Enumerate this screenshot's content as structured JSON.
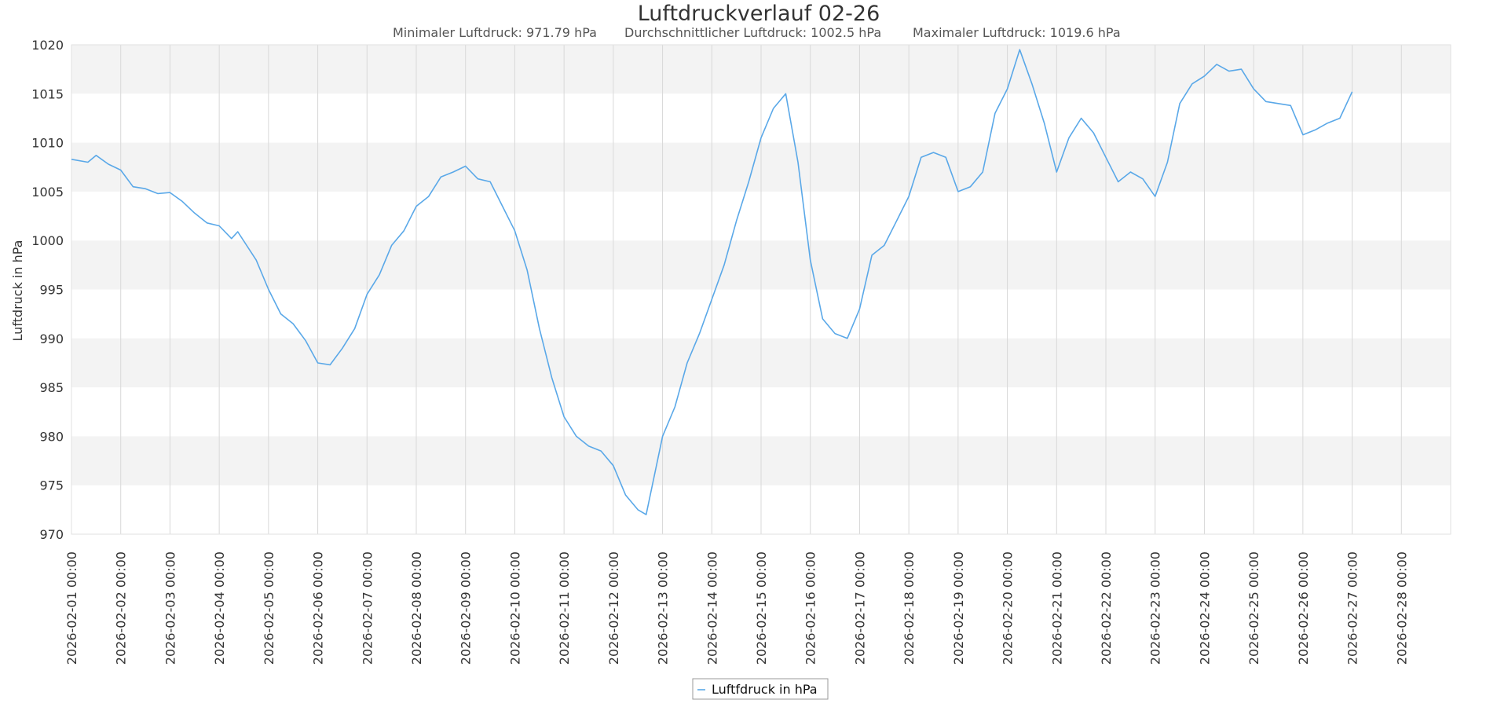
{
  "chart_data": {
    "type": "line",
    "title": "Luftdruckverlauf 02-26",
    "stats": [
      "Minimaler Luftdruck: 971.79 hPa",
      "Durchschnittlicher Luftdruck: 1002.5 hPa",
      "Maximaler Luftdruck: 1019.6 hPa"
    ],
    "xlabel": "",
    "ylabel": "Luftdruck in hPa",
    "ylim": [
      970,
      1020
    ],
    "yticks": [
      970,
      975,
      980,
      985,
      990,
      995,
      1000,
      1005,
      1010,
      1015,
      1020
    ],
    "xlim": [
      0,
      28
    ],
    "xticks": [
      "2026-02-01 00:00",
      "2026-02-02 00:00",
      "2026-02-03 00:00",
      "2026-02-04 00:00",
      "2026-02-05 00:00",
      "2026-02-06 00:00",
      "2026-02-07 00:00",
      "2026-02-08 00:00",
      "2026-02-09 00:00",
      "2026-02-10 00:00",
      "2026-02-11 00:00",
      "2026-02-12 00:00",
      "2026-02-13 00:00",
      "2026-02-14 00:00",
      "2026-02-15 00:00",
      "2026-02-16 00:00",
      "2026-02-17 00:00",
      "2026-02-18 00:00",
      "2026-02-19 00:00",
      "2026-02-20 00:00",
      "2026-02-21 00:00",
      "2026-02-22 00:00",
      "2026-02-23 00:00",
      "2026-02-24 00:00",
      "2026-02-25 00:00",
      "2026-02-26 00:00",
      "2026-02-27 00:00",
      "2026-02-28 00:00"
    ],
    "grid": true,
    "legend": "bottom-center",
    "series": [
      {
        "name": "Luftfdruck in hPa",
        "color": "#5aa8e8",
        "points": [
          [
            "2026-02-01 00:00",
            1008.3
          ],
          [
            "2026-02-01 08:00",
            1008.0
          ],
          [
            "2026-02-01 12:00",
            1008.7
          ],
          [
            "2026-02-01 18:00",
            1007.8
          ],
          [
            "2026-02-02 00:00",
            1007.2
          ],
          [
            "2026-02-02 06:00",
            1005.5
          ],
          [
            "2026-02-02 12:00",
            1005.3
          ],
          [
            "2026-02-02 18:00",
            1004.8
          ],
          [
            "2026-02-03 00:00",
            1004.9
          ],
          [
            "2026-02-03 06:00",
            1004.0
          ],
          [
            "2026-02-03 12:00",
            1002.8
          ],
          [
            "2026-02-03 18:00",
            1001.8
          ],
          [
            "2026-02-04 00:00",
            1001.5
          ],
          [
            "2026-02-04 06:00",
            1000.2
          ],
          [
            "2026-02-04 09:00",
            1000.9
          ],
          [
            "2026-02-04 18:00",
            998.0
          ],
          [
            "2026-02-05 00:00",
            995.0
          ],
          [
            "2026-02-05 06:00",
            992.5
          ],
          [
            "2026-02-05 12:00",
            991.5
          ],
          [
            "2026-02-05 18:00",
            989.8
          ],
          [
            "2026-02-06 00:00",
            987.5
          ],
          [
            "2026-02-06 06:00",
            987.3
          ],
          [
            "2026-02-06 12:00",
            989.0
          ],
          [
            "2026-02-06 18:00",
            991.0
          ],
          [
            "2026-02-07 00:00",
            994.5
          ],
          [
            "2026-02-07 06:00",
            996.5
          ],
          [
            "2026-02-07 12:00",
            999.5
          ],
          [
            "2026-02-07 18:00",
            1001.0
          ],
          [
            "2026-02-08 00:00",
            1003.5
          ],
          [
            "2026-02-08 06:00",
            1004.5
          ],
          [
            "2026-02-08 12:00",
            1006.5
          ],
          [
            "2026-02-08 18:00",
            1007.0
          ],
          [
            "2026-02-09 00:00",
            1007.6
          ],
          [
            "2026-02-09 06:00",
            1006.3
          ],
          [
            "2026-02-09 12:00",
            1006.0
          ],
          [
            "2026-02-09 18:00",
            1003.5
          ],
          [
            "2026-02-10 00:00",
            1001.0
          ],
          [
            "2026-02-10 06:00",
            997.0
          ],
          [
            "2026-02-10 12:00",
            991.0
          ],
          [
            "2026-02-10 18:00",
            986.0
          ],
          [
            "2026-02-11 00:00",
            982.0
          ],
          [
            "2026-02-11 06:00",
            980.0
          ],
          [
            "2026-02-11 12:00",
            979.0
          ],
          [
            "2026-02-11 18:00",
            978.5
          ],
          [
            "2026-02-12 00:00",
            977.0
          ],
          [
            "2026-02-12 06:00",
            974.0
          ],
          [
            "2026-02-12 12:00",
            972.5
          ],
          [
            "2026-02-12 16:00",
            972.0
          ],
          [
            "2026-02-13 00:00",
            980.0
          ],
          [
            "2026-02-13 06:00",
            983.0
          ],
          [
            "2026-02-13 12:00",
            987.5
          ],
          [
            "2026-02-13 18:00",
            990.5
          ],
          [
            "2026-02-14 00:00",
            994.0
          ],
          [
            "2026-02-14 06:00",
            997.5
          ],
          [
            "2026-02-14 12:00",
            1002.0
          ],
          [
            "2026-02-14 18:00",
            1006.0
          ],
          [
            "2026-02-15 00:00",
            1010.5
          ],
          [
            "2026-02-15 06:00",
            1013.5
          ],
          [
            "2026-02-15 12:00",
            1015.0
          ],
          [
            "2026-02-15 18:00",
            1008.0
          ],
          [
            "2026-02-16 00:00",
            998.0
          ],
          [
            "2026-02-16 06:00",
            992.0
          ],
          [
            "2026-02-16 12:00",
            990.5
          ],
          [
            "2026-02-16 18:00",
            990.0
          ],
          [
            "2026-02-17 00:00",
            993.0
          ],
          [
            "2026-02-17 06:00",
            998.5
          ],
          [
            "2026-02-17 12:00",
            999.5
          ],
          [
            "2026-02-17 18:00",
            1002.0
          ],
          [
            "2026-02-18 00:00",
            1004.5
          ],
          [
            "2026-02-18 06:00",
            1008.5
          ],
          [
            "2026-02-18 12:00",
            1009.0
          ],
          [
            "2026-02-18 18:00",
            1008.5
          ],
          [
            "2026-02-19 00:00",
            1005.0
          ],
          [
            "2026-02-19 06:00",
            1005.5
          ],
          [
            "2026-02-19 12:00",
            1007.0
          ],
          [
            "2026-02-19 18:00",
            1013.0
          ],
          [
            "2026-02-20 00:00",
            1015.5
          ],
          [
            "2026-02-20 06:00",
            1019.5
          ],
          [
            "2026-02-20 12:00",
            1016.0
          ],
          [
            "2026-02-20 18:00",
            1012.0
          ],
          [
            "2026-02-21 00:00",
            1007.0
          ],
          [
            "2026-02-21 06:00",
            1010.5
          ],
          [
            "2026-02-21 12:00",
            1012.5
          ],
          [
            "2026-02-21 18:00",
            1011.0
          ],
          [
            "2026-02-22 00:00",
            1008.5
          ],
          [
            "2026-02-22 06:00",
            1006.0
          ],
          [
            "2026-02-22 12:00",
            1007.0
          ],
          [
            "2026-02-22 18:00",
            1006.3
          ],
          [
            "2026-02-23 00:00",
            1004.5
          ],
          [
            "2026-02-23 06:00",
            1008.0
          ],
          [
            "2026-02-23 12:00",
            1014.0
          ],
          [
            "2026-02-23 18:00",
            1016.0
          ],
          [
            "2026-02-24 00:00",
            1016.8
          ],
          [
            "2026-02-24 06:00",
            1018.0
          ],
          [
            "2026-02-24 12:00",
            1017.3
          ],
          [
            "2026-02-24 18:00",
            1017.5
          ],
          [
            "2026-02-25 00:00",
            1015.5
          ],
          [
            "2026-02-25 06:00",
            1014.2
          ],
          [
            "2026-02-25 12:00",
            1014.0
          ],
          [
            "2026-02-25 18:00",
            1013.8
          ],
          [
            "2026-02-26 00:00",
            1010.8
          ],
          [
            "2026-02-26 06:00",
            1011.3
          ],
          [
            "2026-02-26 12:00",
            1012.0
          ],
          [
            "2026-02-26 18:00",
            1012.5
          ],
          [
            "2026-02-27 00:00",
            1015.2
          ]
        ]
      }
    ]
  }
}
